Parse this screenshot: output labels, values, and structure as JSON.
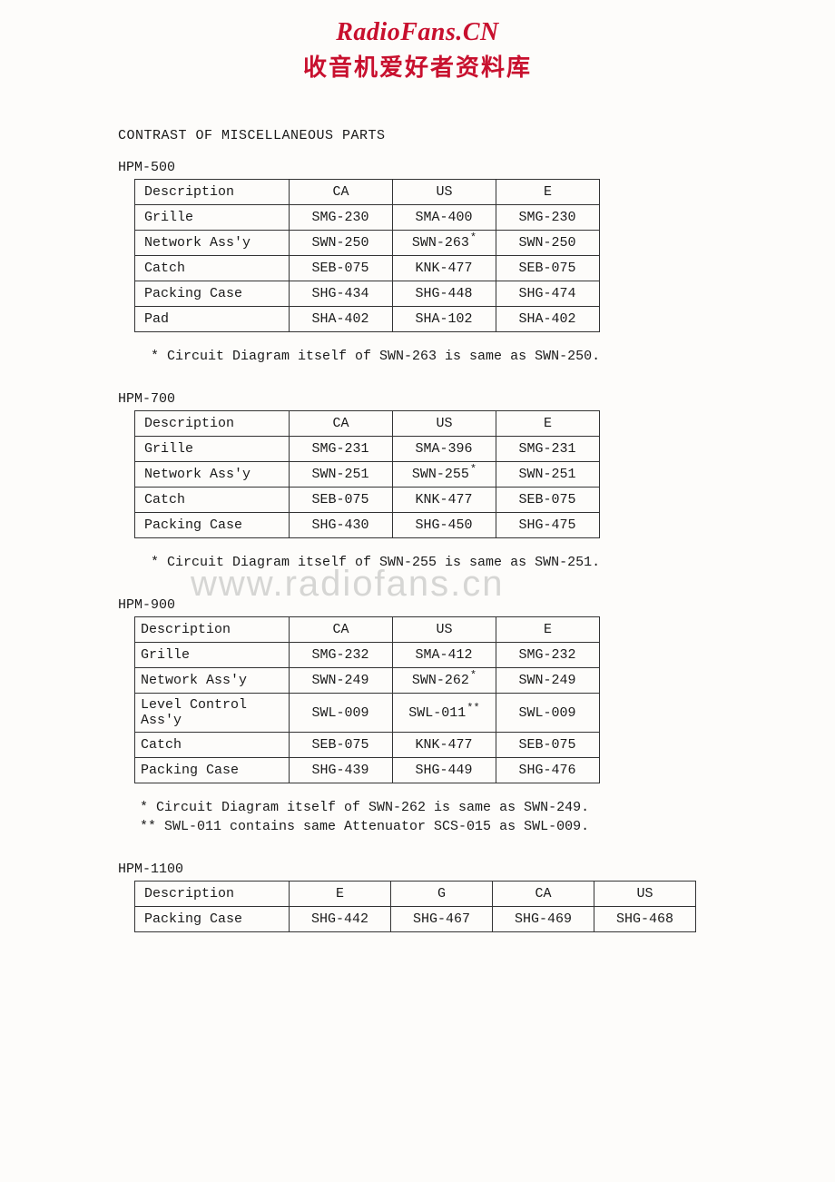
{
  "header": {
    "title": "RadioFans.CN",
    "subtitle": "收音机爱好者资料库"
  },
  "watermark": "www.radiofans.cn",
  "section_title": "CONTRAST OF MISCELLANEOUS PARTS",
  "sections": [
    {
      "model": "HPM-500",
      "columns": [
        "Description",
        "CA",
        "US",
        "E"
      ],
      "rows": [
        {
          "desc": "Grille",
          "vals": [
            "SMG-230",
            "SMA-400",
            "SMG-230"
          ],
          "marks": [
            "",
            "",
            ""
          ]
        },
        {
          "desc": "Network Ass'y",
          "vals": [
            "SWN-250",
            "SWN-263",
            "SWN-250"
          ],
          "marks": [
            "",
            "*",
            ""
          ]
        },
        {
          "desc": "Catch",
          "vals": [
            "SEB-075",
            "KNK-477",
            "SEB-075"
          ],
          "marks": [
            "",
            "",
            ""
          ]
        },
        {
          "desc": "Packing Case",
          "vals": [
            "SHG-434",
            "SHG-448",
            "SHG-474"
          ],
          "marks": [
            "",
            "",
            ""
          ]
        },
        {
          "desc": "Pad",
          "vals": [
            "SHA-402",
            "SHA-102",
            "SHA-402"
          ],
          "marks": [
            "",
            "",
            ""
          ]
        }
      ],
      "notes": [
        "* Circuit Diagram itself of SWN-263 is same as SWN-250."
      ]
    },
    {
      "model": "HPM-700",
      "columns": [
        "Description",
        "CA",
        "US",
        "E"
      ],
      "rows": [
        {
          "desc": "Grille",
          "vals": [
            "SMG-231",
            "SMA-396",
            "SMG-231"
          ],
          "marks": [
            "",
            "",
            ""
          ]
        },
        {
          "desc": "Network Ass'y",
          "vals": [
            "SWN-251",
            "SWN-255",
            "SWN-251"
          ],
          "marks": [
            "",
            "*",
            ""
          ]
        },
        {
          "desc": "Catch",
          "vals": [
            "SEB-075",
            "KNK-477",
            "SEB-075"
          ],
          "marks": [
            "",
            "",
            ""
          ]
        },
        {
          "desc": "Packing Case",
          "vals": [
            "SHG-430",
            "SHG-450",
            "SHG-475"
          ],
          "marks": [
            "",
            "",
            ""
          ]
        }
      ],
      "notes": [
        "* Circuit Diagram itself of SWN-255 is same as SWN-251."
      ]
    },
    {
      "model": "HPM-900",
      "columns": [
        "Description",
        "CA",
        "US",
        "E"
      ],
      "rows": [
        {
          "desc": "Grille",
          "vals": [
            "SMG-232",
            "SMA-412",
            "SMG-232"
          ],
          "marks": [
            "",
            "",
            ""
          ]
        },
        {
          "desc": "Network Ass'y",
          "vals": [
            "SWN-249",
            "SWN-262",
            "SWN-249"
          ],
          "marks": [
            "",
            "*",
            ""
          ]
        },
        {
          "desc": "Level Control Ass'y",
          "vals": [
            "SWL-009",
            "SWL-011",
            "SWL-009"
          ],
          "marks": [
            "",
            "**",
            ""
          ]
        },
        {
          "desc": "Catch",
          "vals": [
            "SEB-075",
            "KNK-477",
            "SEB-075"
          ],
          "marks": [
            "",
            "",
            ""
          ]
        },
        {
          "desc": "Packing Case",
          "vals": [
            "SHG-439",
            "SHG-449",
            "SHG-476"
          ],
          "marks": [
            "",
            "",
            ""
          ]
        }
      ],
      "notes": [
        "* Circuit Diagram itself of SWN-262 is same as SWN-249.",
        "** SWL-011 contains same Attenuator SCS-015 as SWL-009."
      ]
    },
    {
      "model": "HPM-1100",
      "columns": [
        "Description",
        "E",
        "G",
        "CA",
        "US"
      ],
      "rows": [
        {
          "desc": "Packing Case",
          "vals": [
            "SHG-442",
            "SHG-467",
            "SHG-469",
            "SHG-468"
          ],
          "marks": [
            "",
            "",
            "",
            ""
          ]
        }
      ],
      "notes": []
    }
  ]
}
